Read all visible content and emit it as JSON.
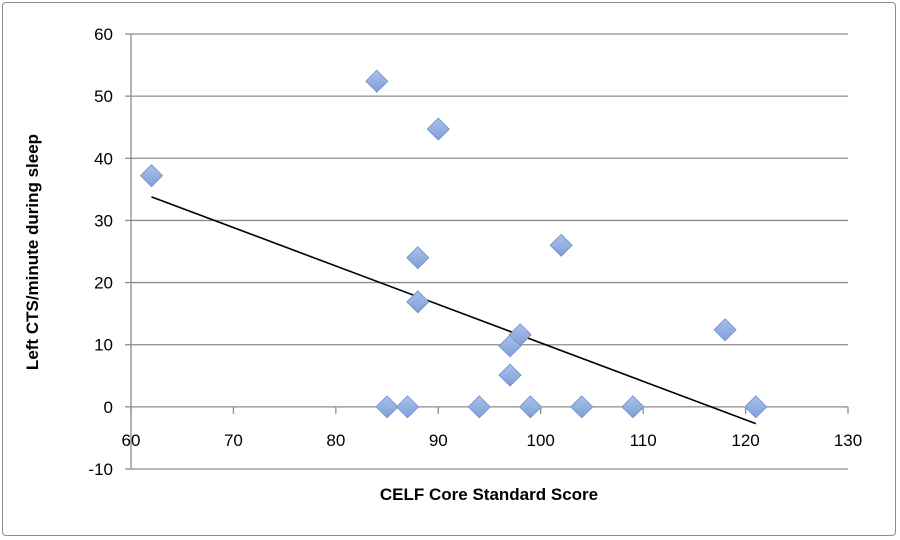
{
  "chart_data": {
    "type": "scatter",
    "title": "",
    "xlabel": "CELF Core Standard Score",
    "ylabel": "Left CTS/minute during sleep",
    "xlim": [
      60,
      130
    ],
    "ylim": [
      -10,
      60
    ],
    "xticks": [
      60,
      70,
      80,
      90,
      100,
      110,
      120,
      130
    ],
    "yticks": [
      -10,
      0,
      10,
      20,
      30,
      40,
      50,
      60
    ],
    "grid": "horizontal",
    "legend": "none",
    "marker_color": "#7f9fd6",
    "series": [
      {
        "name": "Left CTS/minute",
        "points": [
          [
            62,
            37.2
          ],
          [
            84,
            52.4
          ],
          [
            90,
            44.7
          ],
          [
            88,
            24.0
          ],
          [
            88,
            16.9
          ],
          [
            97,
            9.8
          ],
          [
            98,
            11.6
          ],
          [
            97,
            5.1
          ],
          [
            102,
            26.0
          ],
          [
            118,
            12.4
          ],
          [
            85,
            0
          ],
          [
            87,
            0
          ],
          [
            94,
            0
          ],
          [
            99,
            0
          ],
          [
            104,
            0
          ],
          [
            109,
            0
          ],
          [
            121,
            0
          ]
        ]
      }
    ],
    "trendline": {
      "x": [
        62,
        121
      ],
      "y": [
        33.8,
        -2.7
      ],
      "color": "#000000"
    }
  }
}
